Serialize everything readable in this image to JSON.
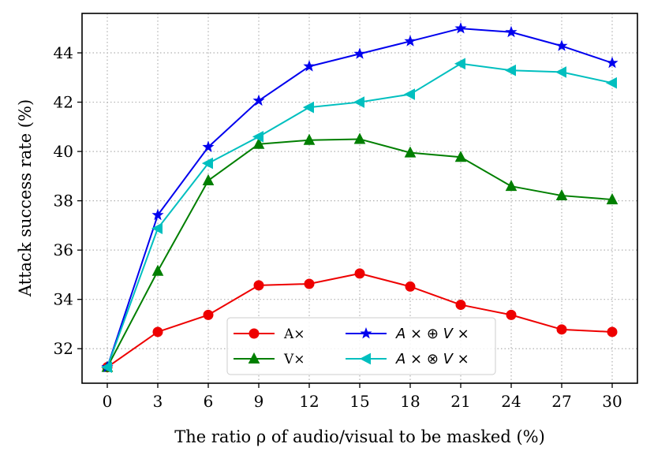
{
  "chart_data": {
    "type": "line",
    "title": "",
    "xlabel": "The ratio ρ of audio/visual to be masked (%)",
    "ylabel": "Attack success rate (%)",
    "x": [
      0,
      3,
      6,
      9,
      12,
      15,
      18,
      21,
      24,
      27,
      30
    ],
    "xticks": [
      "0",
      "3",
      "6",
      "9",
      "12",
      "15",
      "18",
      "21",
      "24",
      "27",
      "30"
    ],
    "yticks": [
      "32",
      "34",
      "36",
      "38",
      "40",
      "42",
      "44"
    ],
    "xlim": [
      -1.5,
      31.5
    ],
    "ylim": [
      30.6,
      45.6
    ],
    "grid": true,
    "legend_position": "bottom-center",
    "series": [
      {
        "name": "A×",
        "color": "#ee0000",
        "marker": "circle",
        "values": [
          31.25,
          32.68,
          33.37,
          34.57,
          34.63,
          35.05,
          34.52,
          33.78,
          33.37,
          32.78,
          32.68
        ]
      },
      {
        "name": "V×",
        "color": "#007f00",
        "marker": "triangle-up",
        "values": [
          31.25,
          35.15,
          38.82,
          40.3,
          40.46,
          40.5,
          39.95,
          39.77,
          38.59,
          38.21,
          38.05
        ]
      },
      {
        "name": "A × ⊕ V ×",
        "color": "#0000ee",
        "marker": "star",
        "values": [
          31.25,
          37.42,
          40.18,
          42.06,
          43.45,
          43.96,
          44.47,
          44.99,
          44.84,
          44.28,
          43.59
        ]
      },
      {
        "name": "A × ⊗ V ×",
        "color": "#00bfbf",
        "marker": "triangle-left",
        "values": [
          31.25,
          36.88,
          39.52,
          40.6,
          41.79,
          42.0,
          42.32,
          43.56,
          43.29,
          43.22,
          42.78
        ]
      }
    ]
  }
}
